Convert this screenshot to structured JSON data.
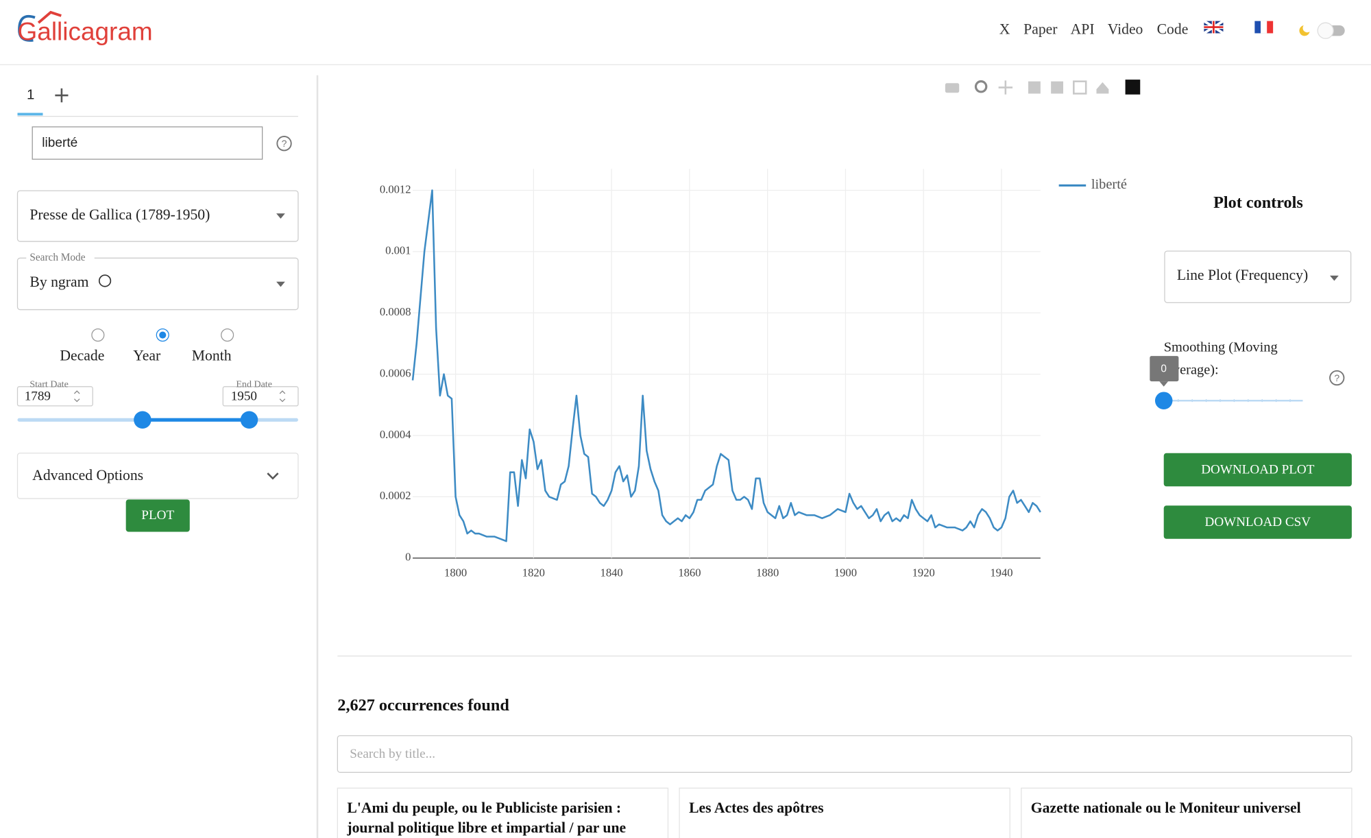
{
  "header": {
    "logo": "Gallicagram",
    "nav": [
      "X",
      "Paper",
      "API",
      "Video",
      "Code"
    ]
  },
  "sidebar": {
    "tab": "1",
    "query": "liberté",
    "corpus": "Presse de Gallica (1789-1950)",
    "search_mode_label": "Search Mode",
    "search_mode": "By ngram",
    "resolutions": [
      "Decade",
      "Year",
      "Month"
    ],
    "start_date_label": "Start Date",
    "start_date": "1789",
    "end_date_label": "End Date",
    "end_date": "1950",
    "advanced": "Advanced Options",
    "plot_button": "PLOT"
  },
  "chart": {
    "type": "line",
    "x": [
      1789,
      1790,
      1791,
      1792,
      1793,
      1794,
      1795,
      1796,
      1797,
      1798,
      1799,
      1800,
      1801,
      1802,
      1803,
      1804,
      1805,
      1806,
      1808,
      1810,
      1812,
      1813,
      1814,
      1815,
      1816,
      1817,
      1818,
      1819,
      1820,
      1821,
      1822,
      1823,
      1824,
      1826,
      1827,
      1828,
      1829,
      1830,
      1831,
      1832,
      1833,
      1834,
      1835,
      1836,
      1837,
      1838,
      1839,
      1840,
      1841,
      1842,
      1843,
      1844,
      1845,
      1846,
      1847,
      1848,
      1849,
      1850,
      1851,
      1852,
      1853,
      1854,
      1855,
      1856,
      1857,
      1858,
      1859,
      1860,
      1861,
      1862,
      1863,
      1864,
      1865,
      1866,
      1867,
      1868,
      1869,
      1870,
      1871,
      1872,
      1873,
      1874,
      1875,
      1876,
      1877,
      1878,
      1879,
      1880,
      1881,
      1882,
      1883,
      1884,
      1885,
      1886,
      1887,
      1888,
      1890,
      1892,
      1894,
      1896,
      1898,
      1900,
      1901,
      1902,
      1903,
      1904,
      1905,
      1906,
      1907,
      1908,
      1909,
      1910,
      1911,
      1912,
      1913,
      1914,
      1915,
      1916,
      1917,
      1918,
      1919,
      1920,
      1921,
      1922,
      1923,
      1924,
      1926,
      1928,
      1930,
      1931,
      1932,
      1933,
      1934,
      1935,
      1936,
      1937,
      1938,
      1939,
      1940,
      1941,
      1942,
      1943,
      1944,
      1945,
      1946,
      1947,
      1948,
      1949,
      1950
    ],
    "series": [
      {
        "name": "liberté",
        "color": "#3d8bc4",
        "values": [
          0.00058,
          0.0007,
          0.00085,
          0.001,
          0.0011,
          0.0012,
          0.00075,
          0.00053,
          0.0006,
          0.00053,
          0.00052,
          0.0002,
          0.00014,
          0.00012,
          8e-05,
          9e-05,
          8e-05,
          8e-05,
          7e-05,
          7e-05,
          6e-05,
          5.5e-05,
          0.00028,
          0.00028,
          0.00017,
          0.00032,
          0.00026,
          0.00042,
          0.00038,
          0.00029,
          0.00032,
          0.00022,
          0.0002,
          0.00019,
          0.00024,
          0.00025,
          0.0003,
          0.00042,
          0.00053,
          0.0004,
          0.00034,
          0.00033,
          0.00021,
          0.0002,
          0.00018,
          0.00017,
          0.00019,
          0.00022,
          0.00028,
          0.0003,
          0.00025,
          0.00027,
          0.0002,
          0.00022,
          0.0003,
          0.00053,
          0.00035,
          0.00029,
          0.00025,
          0.00022,
          0.00014,
          0.00012,
          0.00011,
          0.00012,
          0.00013,
          0.00012,
          0.00014,
          0.00013,
          0.00015,
          0.00019,
          0.00019,
          0.00022,
          0.00023,
          0.00024,
          0.0003,
          0.00034,
          0.00033,
          0.00032,
          0.00022,
          0.00019,
          0.00019,
          0.0002,
          0.00019,
          0.00016,
          0.00026,
          0.00026,
          0.00018,
          0.00015,
          0.00014,
          0.00013,
          0.00017,
          0.00013,
          0.00014,
          0.00018,
          0.00014,
          0.00015,
          0.00014,
          0.00014,
          0.00013,
          0.00014,
          0.00016,
          0.00015,
          0.00021,
          0.00018,
          0.00016,
          0.00017,
          0.00015,
          0.00013,
          0.00014,
          0.00016,
          0.00012,
          0.00014,
          0.00015,
          0.00012,
          0.00013,
          0.00012,
          0.00014,
          0.00013,
          0.00019,
          0.00016,
          0.00014,
          0.00013,
          0.00012,
          0.00014,
          0.0001,
          0.00011,
          0.0001,
          0.0001,
          9e-05,
          0.0001,
          0.00012,
          0.0001,
          0.00014,
          0.00016,
          0.00015,
          0.00013,
          0.0001,
          9e-05,
          0.0001,
          0.00013,
          0.0002,
          0.00022,
          0.00018,
          0.00019,
          0.00017,
          0.00015,
          0.00018,
          0.00017,
          0.00015
        ]
      }
    ],
    "xlim": [
      1789,
      1950
    ],
    "ylim": [
      0,
      0.00127
    ],
    "xticks": [
      1800,
      1820,
      1840,
      1860,
      1880,
      1900,
      1920,
      1940
    ],
    "yticks": [
      0,
      0.0002,
      0.0004,
      0.0006,
      0.0008,
      0.001,
      0.0012
    ],
    "grid": true
  },
  "controls": {
    "title": "Plot controls",
    "plot_type": "Line Plot (Frequency)",
    "smoothing_label": [
      "Smoothing (Moving",
      "Average):"
    ],
    "smoothing_value": "0",
    "buttons": [
      "DOWNLOAD PLOT",
      "DOWNLOAD CSV"
    ]
  },
  "results": {
    "count": "2,627 occurrences found",
    "search_placeholder": "Search by title...",
    "cards": [
      [
        "L'Ami du peuple, ou le Publiciste parisien :",
        "journal politique libre et impartial / par une"
      ],
      [
        "Les Actes des apôtres"
      ],
      [
        "Gazette nationale ou le Moniteur universel"
      ]
    ]
  }
}
